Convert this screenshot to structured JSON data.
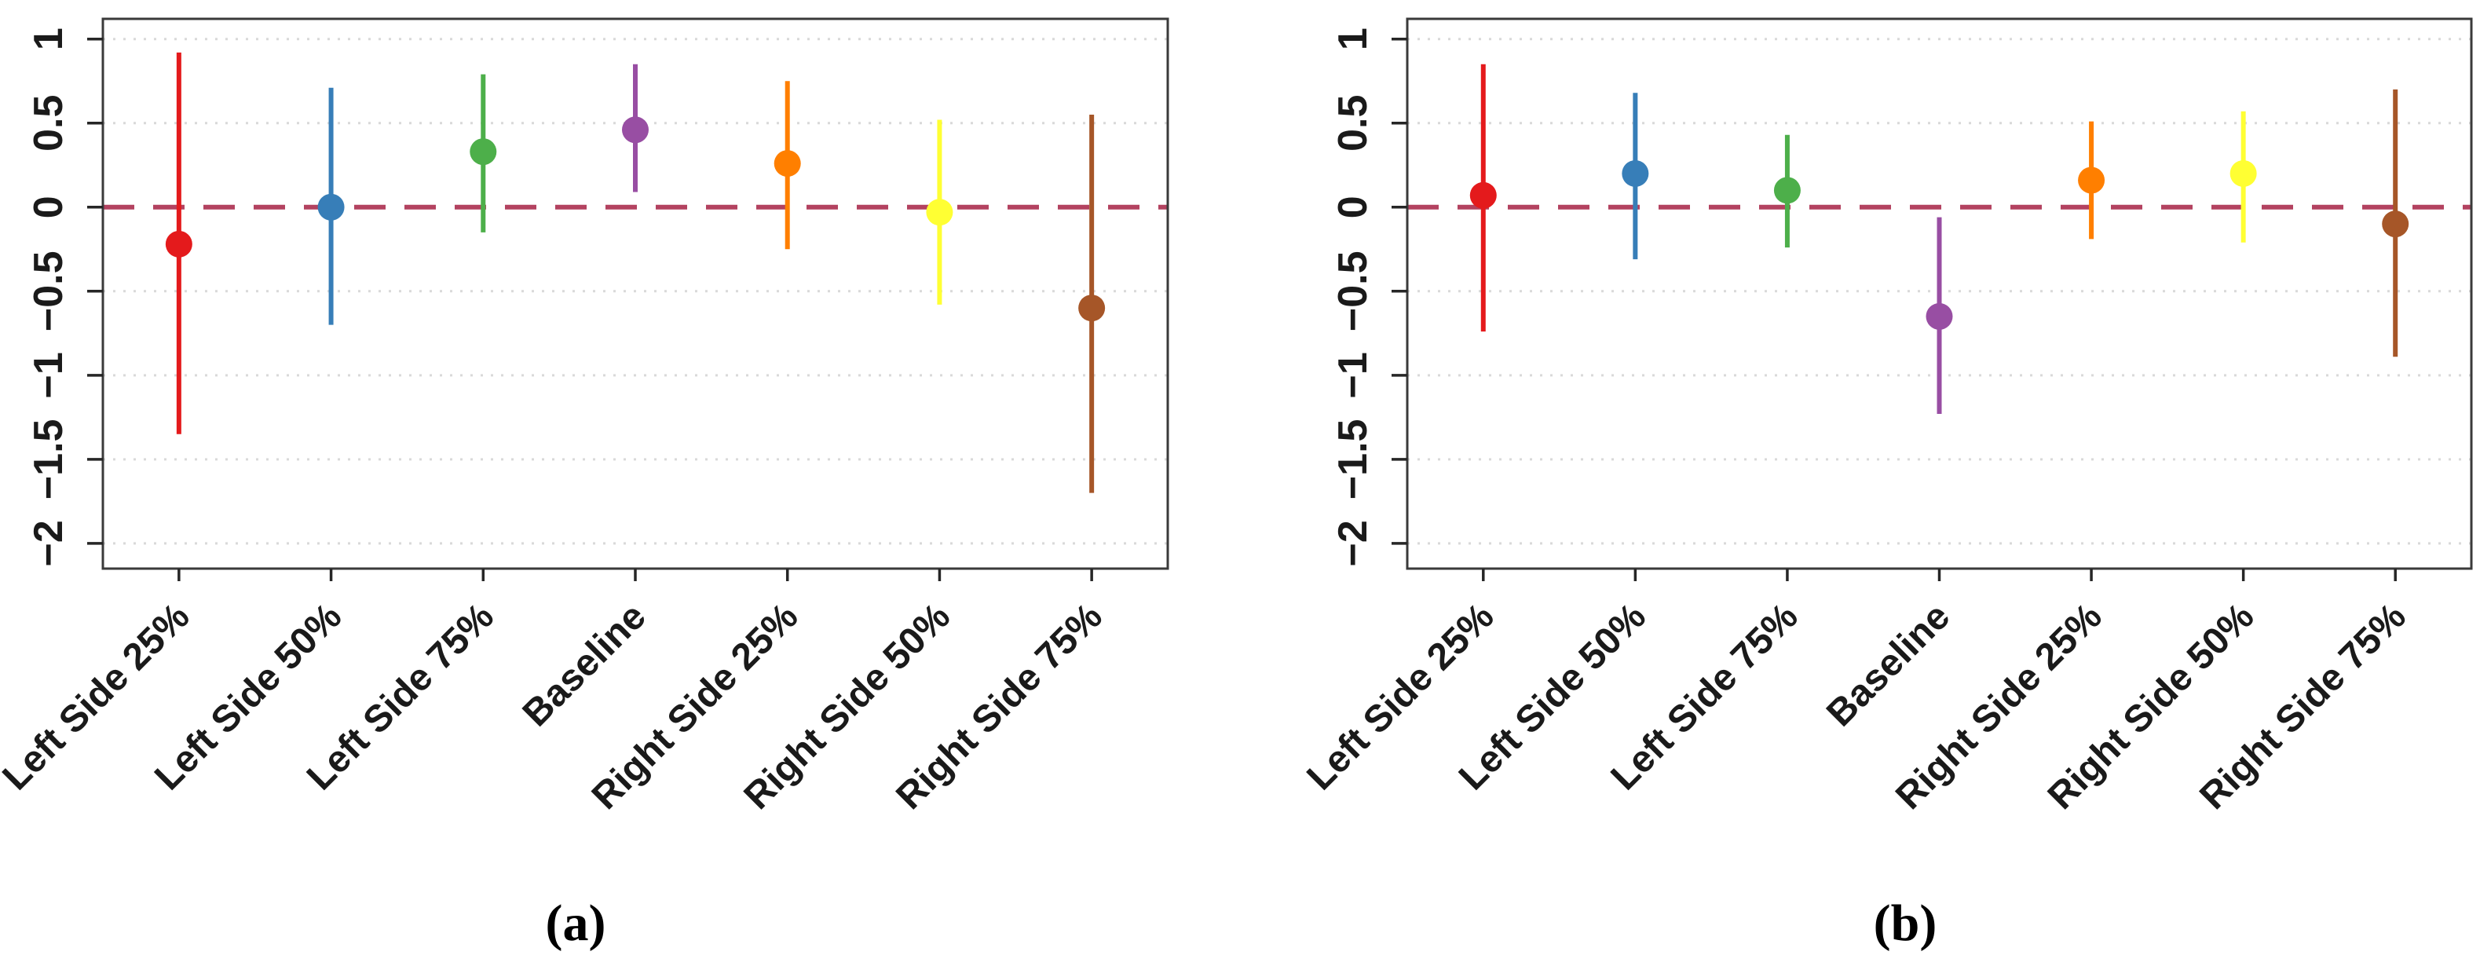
{
  "figure": {
    "background": "#ffffff",
    "panel_captions": [
      "(a)",
      "(b)"
    ]
  },
  "chart_data": [
    {
      "type": "scatter",
      "subtype": "interval-forest-plot",
      "panel": "a",
      "caption": "(a)",
      "title": "",
      "xlabel": "",
      "ylabel": "",
      "categories": [
        "Left Side 25%",
        "Left Side 50%",
        "Left Side 75%",
        "Baseline",
        "Right Side 25%",
        "Right Side 50%",
        "Right Side 75%"
      ],
      "series": [
        {
          "name": "estimate",
          "values": [
            -0.22,
            0.0,
            0.33,
            0.46,
            0.26,
            -0.03,
            -0.6
          ]
        },
        {
          "name": "ci_low",
          "values": [
            -1.35,
            -0.7,
            -0.15,
            0.09,
            -0.25,
            -0.58,
            -1.7
          ]
        },
        {
          "name": "ci_high",
          "values": [
            0.92,
            0.71,
            0.79,
            0.85,
            0.75,
            0.52,
            0.55
          ]
        }
      ],
      "point_colors": [
        "#e41a1c",
        "#377eb8",
        "#4daf4a",
        "#984ea3",
        "#ff7f00",
        "#ffff33",
        "#a65628"
      ],
      "yticks": [
        1,
        0.5,
        0,
        -0.5,
        -1,
        -1.5,
        -2
      ],
      "ytick_labels": [
        "1",
        "0.5",
        "0",
        "−0.5",
        "−1",
        "−1.5",
        "−2"
      ],
      "ylim": [
        -2.15,
        1.12
      ],
      "reference_line": {
        "y": 0,
        "style": "dashed",
        "color": "#b34260"
      },
      "grid": {
        "horizontal": true,
        "style": "dotted",
        "color": "#d9d9d9"
      },
      "legend": "none",
      "axis_color": "#3a3a3a"
    },
    {
      "type": "scatter",
      "subtype": "interval-forest-plot",
      "panel": "b",
      "caption": "(b)",
      "title": "",
      "xlabel": "",
      "ylabel": "",
      "categories": [
        "Left Side 25%",
        "Left Side 50%",
        "Left Side 75%",
        "Baseline",
        "Right Side 25%",
        "Right Side 50%",
        "Right Side 75%"
      ],
      "series": [
        {
          "name": "estimate",
          "values": [
            0.07,
            0.2,
            0.1,
            -0.65,
            0.16,
            0.2,
            -0.1
          ]
        },
        {
          "name": "ci_low",
          "values": [
            -0.74,
            -0.31,
            -0.24,
            -1.23,
            -0.19,
            -0.21,
            -0.89
          ]
        },
        {
          "name": "ci_high",
          "values": [
            0.85,
            0.68,
            0.43,
            -0.06,
            0.51,
            0.57,
            0.7
          ]
        }
      ],
      "point_colors": [
        "#e41a1c",
        "#377eb8",
        "#4daf4a",
        "#984ea3",
        "#ff7f00",
        "#ffff33",
        "#a65628"
      ],
      "yticks": [
        1,
        0.5,
        0,
        -0.5,
        -1,
        -1.5,
        -2
      ],
      "ytick_labels": [
        "1",
        "0.5",
        "0",
        "−0.5",
        "−1",
        "−1.5",
        "−2"
      ],
      "ylim": [
        -2.15,
        1.12
      ],
      "reference_line": {
        "y": 0,
        "style": "dashed",
        "color": "#b34260"
      },
      "grid": {
        "horizontal": true,
        "style": "dotted",
        "color": "#d9d9d9"
      },
      "legend": "none",
      "axis_color": "#3a3a3a"
    }
  ]
}
